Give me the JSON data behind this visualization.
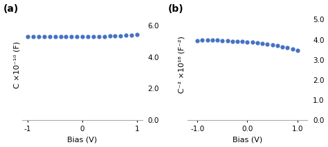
{
  "panel_a": {
    "label": "(a)",
    "xlabel": "Bias (V)",
    "ylabel": "C ×10⁻¹⁰ (F)",
    "xlim": [
      -1.1,
      1.1
    ],
    "ylim": [
      0.0,
      7.0
    ],
    "yticks": [
      0.0,
      2.0,
      4.0,
      6.0
    ],
    "xticks": [
      -1,
      0,
      1
    ],
    "xtick_labels": [
      "-1",
      "0",
      "1"
    ],
    "ytick_labels": [
      "0.0",
      "2.0",
      "4.0",
      "6.0"
    ],
    "x": [
      -1.0,
      -0.9,
      -0.8,
      -0.7,
      -0.6,
      -0.5,
      -0.4,
      -0.3,
      -0.2,
      -0.1,
      0.0,
      0.1,
      0.2,
      0.3,
      0.4,
      0.5,
      0.6,
      0.7,
      0.8,
      0.9,
      1.0
    ],
    "y": [
      5.28,
      5.28,
      5.28,
      5.28,
      5.28,
      5.28,
      5.28,
      5.28,
      5.29,
      5.29,
      5.3,
      5.3,
      5.3,
      5.3,
      5.31,
      5.32,
      5.33,
      5.34,
      5.36,
      5.38,
      5.42
    ],
    "dot_color": "#4472C4",
    "dot_size": 4.5
  },
  "panel_b": {
    "label": "(b)",
    "xlabel": "Bias (V)",
    "ylabel": "C⁻² ×10¹⁸ (F⁻²)",
    "xlim": [
      -1.2,
      1.2
    ],
    "ylim": [
      0.0,
      5.5
    ],
    "yticks": [
      0.0,
      1.0,
      2.0,
      3.0,
      4.0,
      5.0
    ],
    "xticks": [
      -1.0,
      0.0,
      1.0
    ],
    "xtick_labels": [
      "-1.0",
      "0.0",
      "1.0"
    ],
    "ytick_labels": [
      "0.0",
      "1.0",
      "2.0",
      "3.0",
      "4.0",
      "5.0"
    ],
    "x": [
      -1.0,
      -0.9,
      -0.8,
      -0.7,
      -0.6,
      -0.5,
      -0.4,
      -0.3,
      -0.2,
      -0.1,
      0.0,
      0.1,
      0.2,
      0.3,
      0.4,
      0.5,
      0.6,
      0.7,
      0.8,
      0.9,
      1.0
    ],
    "y": [
      3.95,
      3.97,
      3.98,
      3.98,
      3.97,
      3.96,
      3.95,
      3.93,
      3.92,
      3.9,
      3.89,
      3.87,
      3.85,
      3.82,
      3.78,
      3.74,
      3.7,
      3.65,
      3.6,
      3.55,
      3.48
    ],
    "dot_color": "#4472C4",
    "dot_size": 4.5
  },
  "background_color": "#ffffff",
  "spine_color": "#aaaaaa",
  "label_fontsize": 8,
  "tick_fontsize": 7.5,
  "panel_label_fontsize": 10
}
